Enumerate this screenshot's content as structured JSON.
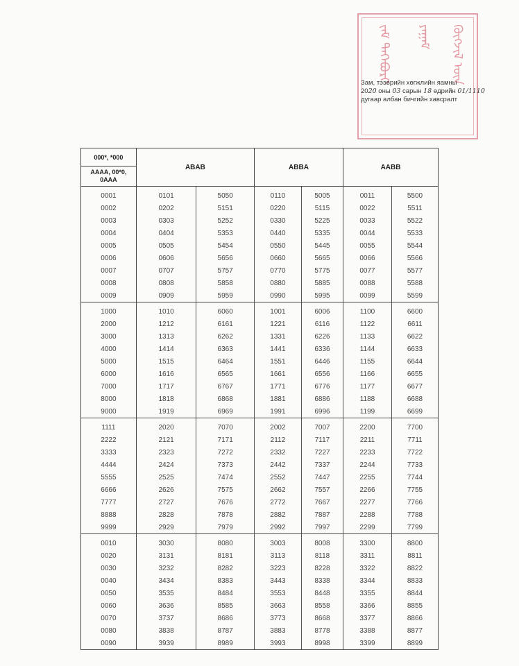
{
  "stamp": {
    "line1": "Зам, тээврийн хөгжлийн яамны",
    "line2_prefix": "20",
    "year": "20",
    "line2_mid1": " оны ",
    "month": "03",
    "line2_mid2": " сарын ",
    "day": "18",
    "line2_mid3": " өдрийн ",
    "number": "01/1110",
    "line3": "дугаар албан бичгийн хавсралт",
    "color": "#e39aa3"
  },
  "table": {
    "header": {
      "col0_top": "000*, *000",
      "col0_bottom": "AAAA, 00*0, 0AAA",
      "groups": [
        "ABAB",
        "ABBA",
        "AABB"
      ]
    },
    "sections": [
      [
        [
          "0001",
          "0101",
          "5050",
          "0110",
          "5005",
          "0011",
          "5500"
        ],
        [
          "0002",
          "0202",
          "5151",
          "0220",
          "5115",
          "0022",
          "5511"
        ],
        [
          "0003",
          "0303",
          "5252",
          "0330",
          "5225",
          "0033",
          "5522"
        ],
        [
          "0004",
          "0404",
          "5353",
          "0440",
          "5335",
          "0044",
          "5533"
        ],
        [
          "0005",
          "0505",
          "5454",
          "0550",
          "5445",
          "0055",
          "5544"
        ],
        [
          "0006",
          "0606",
          "5656",
          "0660",
          "5665",
          "0066",
          "5566"
        ],
        [
          "0007",
          "0707",
          "5757",
          "0770",
          "5775",
          "0077",
          "5577"
        ],
        [
          "0008",
          "0808",
          "5858",
          "0880",
          "5885",
          "0088",
          "5588"
        ],
        [
          "0009",
          "0909",
          "5959",
          "0990",
          "5995",
          "0099",
          "5599"
        ]
      ],
      [
        [
          "1000",
          "1010",
          "6060",
          "1001",
          "6006",
          "1100",
          "6600"
        ],
        [
          "2000",
          "1212",
          "6161",
          "1221",
          "6116",
          "1122",
          "6611"
        ],
        [
          "3000",
          "1313",
          "6262",
          "1331",
          "6226",
          "1133",
          "6622"
        ],
        [
          "4000",
          "1414",
          "6363",
          "1441",
          "6336",
          "1144",
          "6633"
        ],
        [
          "5000",
          "1515",
          "6464",
          "1551",
          "6446",
          "1155",
          "6644"
        ],
        [
          "6000",
          "1616",
          "6565",
          "1661",
          "6556",
          "1166",
          "6655"
        ],
        [
          "7000",
          "1717",
          "6767",
          "1771",
          "6776",
          "1177",
          "6677"
        ],
        [
          "8000",
          "1818",
          "6868",
          "1881",
          "6886",
          "1188",
          "6688"
        ],
        [
          "9000",
          "1919",
          "6969",
          "1991",
          "6996",
          "1199",
          "6699"
        ]
      ],
      [
        [
          "1111",
          "2020",
          "7070",
          "2002",
          "7007",
          "2200",
          "7700"
        ],
        [
          "2222",
          "2121",
          "7171",
          "2112",
          "7117",
          "2211",
          "7711"
        ],
        [
          "3333",
          "2323",
          "7272",
          "2332",
          "7227",
          "2233",
          "7722"
        ],
        [
          "4444",
          "2424",
          "7373",
          "2442",
          "7337",
          "2244",
          "7733"
        ],
        [
          "5555",
          "2525",
          "7474",
          "2552",
          "7447",
          "2255",
          "7744"
        ],
        [
          "6666",
          "2626",
          "7575",
          "2662",
          "7557",
          "2266",
          "7755"
        ],
        [
          "7777",
          "2727",
          "7676",
          "2772",
          "7667",
          "2277",
          "7766"
        ],
        [
          "8888",
          "2828",
          "7878",
          "2882",
          "7887",
          "2288",
          "7788"
        ],
        [
          "9999",
          "2929",
          "7979",
          "2992",
          "7997",
          "2299",
          "7799"
        ]
      ],
      [
        [
          "0010",
          "3030",
          "8080",
          "3003",
          "8008",
          "3300",
          "8800"
        ],
        [
          "0020",
          "3131",
          "8181",
          "3113",
          "8118",
          "3311",
          "8811"
        ],
        [
          "0030",
          "3232",
          "8282",
          "3223",
          "8228",
          "3322",
          "8822"
        ],
        [
          "0040",
          "3434",
          "8383",
          "3443",
          "8338",
          "3344",
          "8833"
        ],
        [
          "0050",
          "3535",
          "8484",
          "3553",
          "8448",
          "3355",
          "8844"
        ],
        [
          "0060",
          "3636",
          "8585",
          "3663",
          "8558",
          "3366",
          "8855"
        ],
        [
          "0070",
          "3737",
          "8686",
          "3773",
          "8668",
          "3377",
          "8866"
        ],
        [
          "0080",
          "3838",
          "8787",
          "3883",
          "8778",
          "3388",
          "8877"
        ],
        [
          "0090",
          "3939",
          "8989",
          "3993",
          "8998",
          "3399",
          "8899"
        ]
      ]
    ]
  }
}
